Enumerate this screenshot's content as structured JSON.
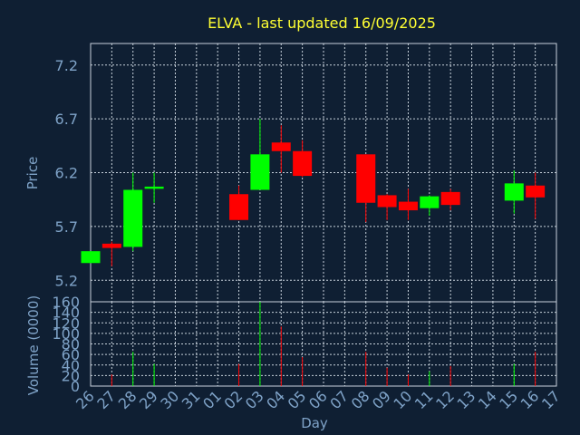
{
  "chart_data": {
    "type": "candlestick",
    "title": "ELVA - last updated 16/09/2025",
    "xlabel": "Day",
    "x_ticks": [
      "26",
      "27",
      "28",
      "29",
      "30",
      "31",
      "01",
      "02",
      "03",
      "04",
      "05",
      "06",
      "07",
      "08",
      "09",
      "10",
      "11",
      "12",
      "13",
      "14",
      "15",
      "16",
      "17"
    ],
    "price": {
      "ylabel": "Price",
      "ylim": [
        5.0,
        7.4
      ],
      "ticks": [
        "5.2",
        "5.7",
        "6.2",
        "6.7",
        "7.2"
      ],
      "candles": [
        {
          "day": "26",
          "open": 5.36,
          "high": 5.47,
          "low": 5.36,
          "close": 5.47
        },
        {
          "day": "27",
          "open": 5.54,
          "high": 5.56,
          "low": 5.33,
          "close": 5.5
        },
        {
          "day": "28",
          "open": 5.51,
          "high": 6.2,
          "low": 5.47,
          "close": 6.04
        },
        {
          "day": "29",
          "open": 6.05,
          "high": 6.2,
          "low": 5.92,
          "close": 6.07
        },
        {
          "day": "02",
          "open": 6.0,
          "high": 6.08,
          "low": 5.76,
          "close": 5.76
        },
        {
          "day": "03",
          "open": 6.04,
          "high": 6.7,
          "low": 6.04,
          "close": 6.37
        },
        {
          "day": "04",
          "open": 6.48,
          "high": 6.64,
          "low": 6.2,
          "close": 6.4
        },
        {
          "day": "05",
          "open": 6.4,
          "high": 6.5,
          "low": 6.16,
          "close": 6.17
        },
        {
          "day": "08",
          "open": 6.37,
          "high": 6.37,
          "low": 5.74,
          "close": 5.92
        },
        {
          "day": "09",
          "open": 5.99,
          "high": 6.0,
          "low": 5.76,
          "close": 5.88
        },
        {
          "day": "10",
          "open": 5.93,
          "high": 6.05,
          "low": 5.76,
          "close": 5.85
        },
        {
          "day": "11",
          "open": 5.87,
          "high": 5.99,
          "low": 5.8,
          "close": 5.98
        },
        {
          "day": "12",
          "open": 6.02,
          "high": 6.05,
          "low": 5.85,
          "close": 5.9
        },
        {
          "day": "15",
          "open": 5.94,
          "high": 6.22,
          "low": 5.82,
          "close": 6.1
        },
        {
          "day": "16",
          "open": 6.08,
          "high": 6.2,
          "low": 5.77,
          "close": 5.97
        }
      ]
    },
    "volume": {
      "ylabel": "Volume (0000)",
      "ylim": [
        0,
        160
      ],
      "ticks": [
        "0",
        "20",
        "40",
        "60",
        "80",
        "100",
        "120",
        "140",
        "160"
      ],
      "bars": [
        {
          "day": "27",
          "value": 22,
          "dir": "down"
        },
        {
          "day": "28",
          "value": 65,
          "dir": "up"
        },
        {
          "day": "29",
          "value": 42,
          "dir": "up"
        },
        {
          "day": "02",
          "value": 42,
          "dir": "down"
        },
        {
          "day": "03",
          "value": 160,
          "dir": "up"
        },
        {
          "day": "04",
          "value": 113,
          "dir": "down"
        },
        {
          "day": "05",
          "value": 55,
          "dir": "down"
        },
        {
          "day": "08",
          "value": 65,
          "dir": "down"
        },
        {
          "day": "09",
          "value": 35,
          "dir": "down"
        },
        {
          "day": "10",
          "value": 22,
          "dir": "down"
        },
        {
          "day": "11",
          "value": 28,
          "dir": "up"
        },
        {
          "day": "12",
          "value": 38,
          "dir": "down"
        },
        {
          "day": "15",
          "value": 42,
          "dir": "up"
        },
        {
          "day": "16",
          "value": 65,
          "dir": "down"
        }
      ]
    },
    "colors": {
      "up": "#00ff00",
      "down": "#ff0000",
      "background": "#0f1f33",
      "grid": "#c8d2dc",
      "title": "#ffff33",
      "axis_text": "#7fa3c8"
    }
  }
}
